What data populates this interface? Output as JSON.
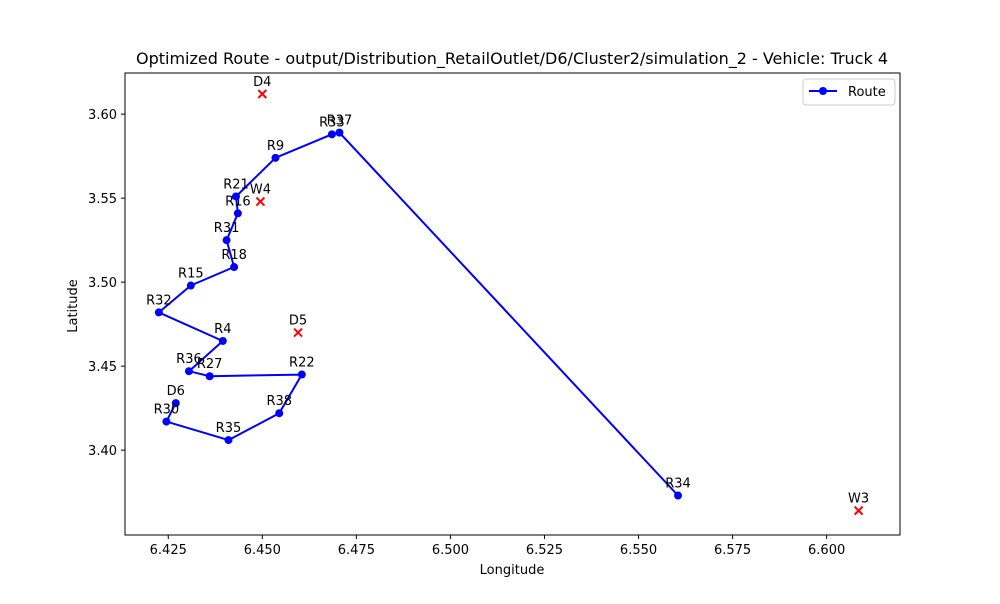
{
  "chart_data": {
    "type": "line",
    "title": "Optimized Route - output/Distribution_RetailOutlet/D6/Cluster2/simulation_2 - Vehicle: Truck 4",
    "xlabel": "Longitude",
    "ylabel": "Latitude",
    "xlim": [
      6.4135,
      6.6195
    ],
    "ylim": [
      3.3495,
      3.6245
    ],
    "x_ticks": [
      6.425,
      6.45,
      6.475,
      6.5,
      6.525,
      6.55,
      6.575,
      6.6
    ],
    "x_tick_labels": [
      "6.425",
      "6.450",
      "6.475",
      "6.500",
      "6.525",
      "6.550",
      "6.575",
      "6.600"
    ],
    "y_ticks": [
      3.4,
      3.45,
      3.5,
      3.55,
      3.6
    ],
    "y_tick_labels": [
      "3.40",
      "3.45",
      "3.50",
      "3.55",
      "3.60"
    ],
    "grid": false,
    "legend": {
      "placement": "top-right",
      "entries": [
        "Route"
      ]
    },
    "series": [
      {
        "name": "Route",
        "color": "#0000ff",
        "marker": "circle",
        "points": [
          {
            "label": "D6",
            "x": 6.427,
            "y": 3.428
          },
          {
            "label": "R30",
            "x": 6.4245,
            "y": 3.417
          },
          {
            "label": "R35",
            "x": 6.441,
            "y": 3.406
          },
          {
            "label": "R38",
            "x": 6.4545,
            "y": 3.422
          },
          {
            "label": "R22",
            "x": 6.4605,
            "y": 3.445
          },
          {
            "label": "R27",
            "x": 6.436,
            "y": 3.444
          },
          {
            "label": "R36",
            "x": 6.4305,
            "y": 3.447
          },
          {
            "label": "R4",
            "x": 6.4395,
            "y": 3.465
          },
          {
            "label": "R32",
            "x": 6.4225,
            "y": 3.482
          },
          {
            "label": "R15",
            "x": 6.431,
            "y": 3.498
          },
          {
            "label": "R18",
            "x": 6.4425,
            "y": 3.509
          },
          {
            "label": "R31",
            "x": 6.4405,
            "y": 3.525
          },
          {
            "label": "R16",
            "x": 6.4435,
            "y": 3.541
          },
          {
            "label": "R21",
            "x": 6.443,
            "y": 3.551
          },
          {
            "label": "R9",
            "x": 6.4535,
            "y": 3.574
          },
          {
            "label": "R33",
            "x": 6.4685,
            "y": 3.588
          },
          {
            "label": "R37",
            "x": 6.4705,
            "y": 3.589
          },
          {
            "label": "R34",
            "x": 6.5605,
            "y": 3.373
          }
        ]
      }
    ],
    "depots": {
      "color": "#ff0000",
      "marker": "x",
      "points": [
        {
          "label": "D4",
          "x": 6.45,
          "y": 3.612
        },
        {
          "label": "W4",
          "x": 6.4495,
          "y": 3.548
        },
        {
          "label": "D5",
          "x": 6.4595,
          "y": 3.47
        },
        {
          "label": "W3",
          "x": 6.6085,
          "y": 3.364
        }
      ]
    }
  }
}
